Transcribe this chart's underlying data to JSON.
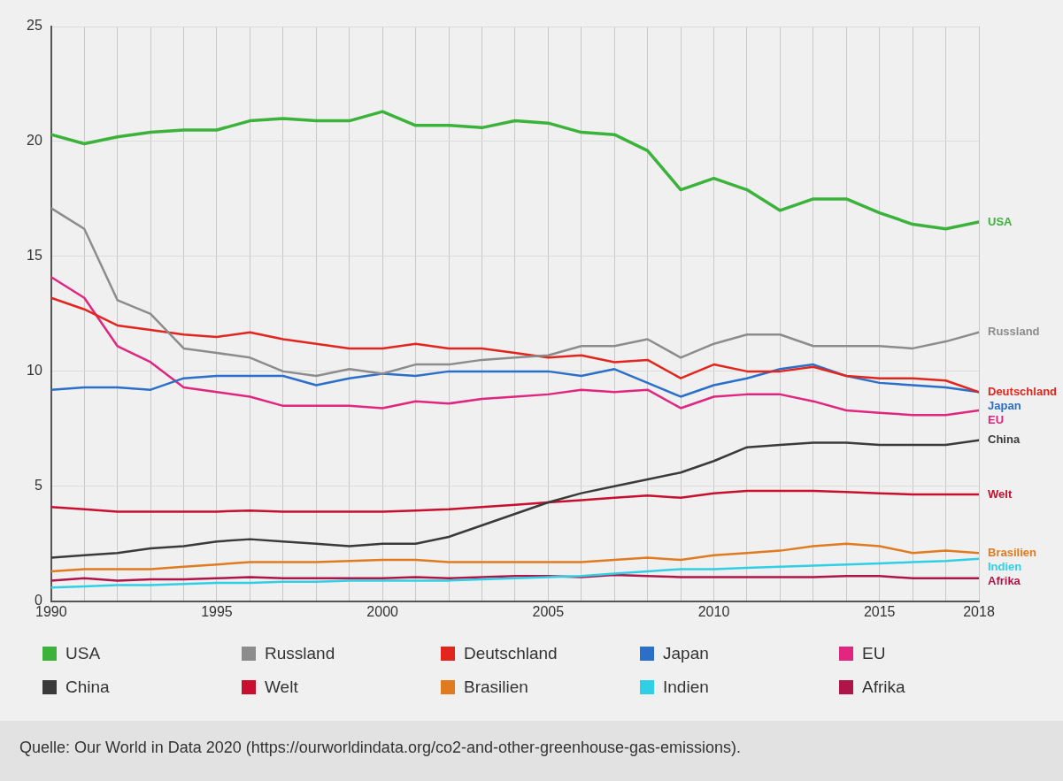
{
  "chart_data": {
    "type": "line",
    "x": [
      1990,
      1991,
      1992,
      1993,
      1994,
      1995,
      1996,
      1997,
      1998,
      1999,
      2000,
      2001,
      2002,
      2003,
      2004,
      2005,
      2006,
      2007,
      2008,
      2009,
      2010,
      2011,
      2012,
      2013,
      2014,
      2015,
      2016,
      2017,
      2018
    ],
    "xlim": [
      1990,
      2018
    ],
    "xticks": [
      1990,
      {
        "value": 1991,
        "label": null
      },
      {
        "value": 1992,
        "label": null
      },
      {
        "value": 1993,
        "label": null
      },
      {
        "value": 1994,
        "label": null
      },
      1995,
      {
        "value": 1996,
        "label": null
      },
      {
        "value": 1997,
        "label": null
      },
      {
        "value": 1998,
        "label": null
      },
      {
        "value": 1999,
        "label": null
      },
      2000,
      {
        "value": 2001,
        "label": null
      },
      {
        "value": 2002,
        "label": null
      },
      {
        "value": 2003,
        "label": null
      },
      {
        "value": 2004,
        "label": null
      },
      2005,
      {
        "value": 2006,
        "label": null
      },
      {
        "value": 2007,
        "label": null
      },
      {
        "value": 2008,
        "label": null
      },
      {
        "value": 2009,
        "label": null
      },
      2010,
      {
        "value": 2011,
        "label": null
      },
      {
        "value": 2012,
        "label": null
      },
      {
        "value": 2013,
        "label": null
      },
      {
        "value": 2014,
        "label": null
      },
      2015,
      {
        "value": 2016,
        "label": null
      },
      {
        "value": 2017,
        "label": null
      },
      2018
    ],
    "ylim": [
      0,
      25
    ],
    "yticks": [
      0,
      5,
      10,
      15,
      20,
      25
    ],
    "grid": true,
    "legend": "bottom",
    "marker": "none",
    "line_style": "solid",
    "series": [
      {
        "name": "USA",
        "color": "#3bb33b",
        "values": [
          20.3,
          19.9,
          20.2,
          20.4,
          20.5,
          20.5,
          20.9,
          21.0,
          20.9,
          20.9,
          21.3,
          20.7,
          20.7,
          20.6,
          20.9,
          20.8,
          20.4,
          20.3,
          19.6,
          17.9,
          18.4,
          17.9,
          17.0,
          17.5,
          17.5,
          16.9,
          16.4,
          16.2,
          16.5
        ]
      },
      {
        "name": "Russland",
        "color": "#8c8c8c",
        "values": [
          17.1,
          16.2,
          13.1,
          12.5,
          11.0,
          10.8,
          10.6,
          10.0,
          9.8,
          10.1,
          9.9,
          10.3,
          10.3,
          10.5,
          10.6,
          10.7,
          11.1,
          11.1,
          11.4,
          10.6,
          11.2,
          11.6,
          11.6,
          11.1,
          11.1,
          11.1,
          11.0,
          11.3,
          11.7
        ]
      },
      {
        "name": "Deutschland",
        "color": "#e2261d",
        "values": [
          13.2,
          12.7,
          12.0,
          11.8,
          11.6,
          11.5,
          11.7,
          11.4,
          11.2,
          11.0,
          11.0,
          11.2,
          11.0,
          11.0,
          10.8,
          10.6,
          10.7,
          10.4,
          10.5,
          9.7,
          10.3,
          10.0,
          10.0,
          10.2,
          9.8,
          9.7,
          9.7,
          9.6,
          9.1
        ]
      },
      {
        "name": "Japan",
        "color": "#2a6fc9",
        "values": [
          9.2,
          9.3,
          9.3,
          9.2,
          9.7,
          9.8,
          9.8,
          9.8,
          9.4,
          9.7,
          9.9,
          9.8,
          10.0,
          10.0,
          10.0,
          10.0,
          9.8,
          10.1,
          9.5,
          8.9,
          9.4,
          9.7,
          10.1,
          10.3,
          9.8,
          9.5,
          9.4,
          9.3,
          9.1
        ]
      },
      {
        "name": "EU",
        "color": "#e0267f",
        "values": [
          14.1,
          13.2,
          11.1,
          10.4,
          9.3,
          9.1,
          8.9,
          8.5,
          8.5,
          8.5,
          8.4,
          8.7,
          8.6,
          8.8,
          8.9,
          9.0,
          9.2,
          9.1,
          9.2,
          8.4,
          8.9,
          9.0,
          9.0,
          8.7,
          8.3,
          8.2,
          8.1,
          8.1,
          8.3
        ]
      },
      {
        "name": "China",
        "color": "#3a3a3a",
        "values": [
          1.9,
          2.0,
          2.1,
          2.3,
          2.4,
          2.6,
          2.7,
          2.6,
          2.5,
          2.4,
          2.5,
          2.5,
          2.8,
          3.3,
          3.8,
          4.3,
          4.7,
          5.0,
          5.3,
          5.6,
          6.1,
          6.7,
          6.8,
          6.9,
          6.9,
          6.8,
          6.8,
          6.8,
          7.0
        ]
      },
      {
        "name": "Welt",
        "color": "#c8102e",
        "values": [
          4.1,
          4.0,
          3.9,
          3.9,
          3.9,
          3.9,
          3.95,
          3.9,
          3.9,
          3.9,
          3.9,
          3.95,
          4.0,
          4.1,
          4.2,
          4.3,
          4.4,
          4.5,
          4.6,
          4.5,
          4.7,
          4.8,
          4.8,
          4.8,
          4.75,
          4.7,
          4.65,
          4.65,
          4.65
        ]
      },
      {
        "name": "Brasilien",
        "color": "#e07b20",
        "values": [
          1.3,
          1.4,
          1.4,
          1.4,
          1.5,
          1.6,
          1.7,
          1.7,
          1.7,
          1.75,
          1.8,
          1.8,
          1.7,
          1.7,
          1.7,
          1.7,
          1.7,
          1.8,
          1.9,
          1.8,
          2.0,
          2.1,
          2.2,
          2.4,
          2.5,
          2.4,
          2.1,
          2.2,
          2.1
        ]
      },
      {
        "name": "Indien",
        "color": "#2fd0e6",
        "values": [
          0.6,
          0.65,
          0.7,
          0.7,
          0.75,
          0.8,
          0.8,
          0.85,
          0.85,
          0.9,
          0.9,
          0.9,
          0.9,
          0.95,
          1.0,
          1.05,
          1.1,
          1.2,
          1.3,
          1.4,
          1.4,
          1.45,
          1.5,
          1.55,
          1.6,
          1.65,
          1.7,
          1.75,
          1.85
        ]
      },
      {
        "name": "Afrika",
        "color": "#b0154a",
        "values": [
          0.9,
          1.0,
          0.9,
          0.95,
          0.95,
          1.0,
          1.05,
          1.0,
          1.0,
          1.0,
          1.0,
          1.05,
          1.0,
          1.05,
          1.1,
          1.1,
          1.05,
          1.15,
          1.1,
          1.05,
          1.05,
          1.05,
          1.05,
          1.05,
          1.1,
          1.1,
          1.0,
          1.0,
          1.0
        ]
      }
    ],
    "annotations": [
      "Quelle: Our World in Data 2020 (https://ourworldindata.org/co2-and-other-greenhouse-gas-emissions)."
    ]
  }
}
